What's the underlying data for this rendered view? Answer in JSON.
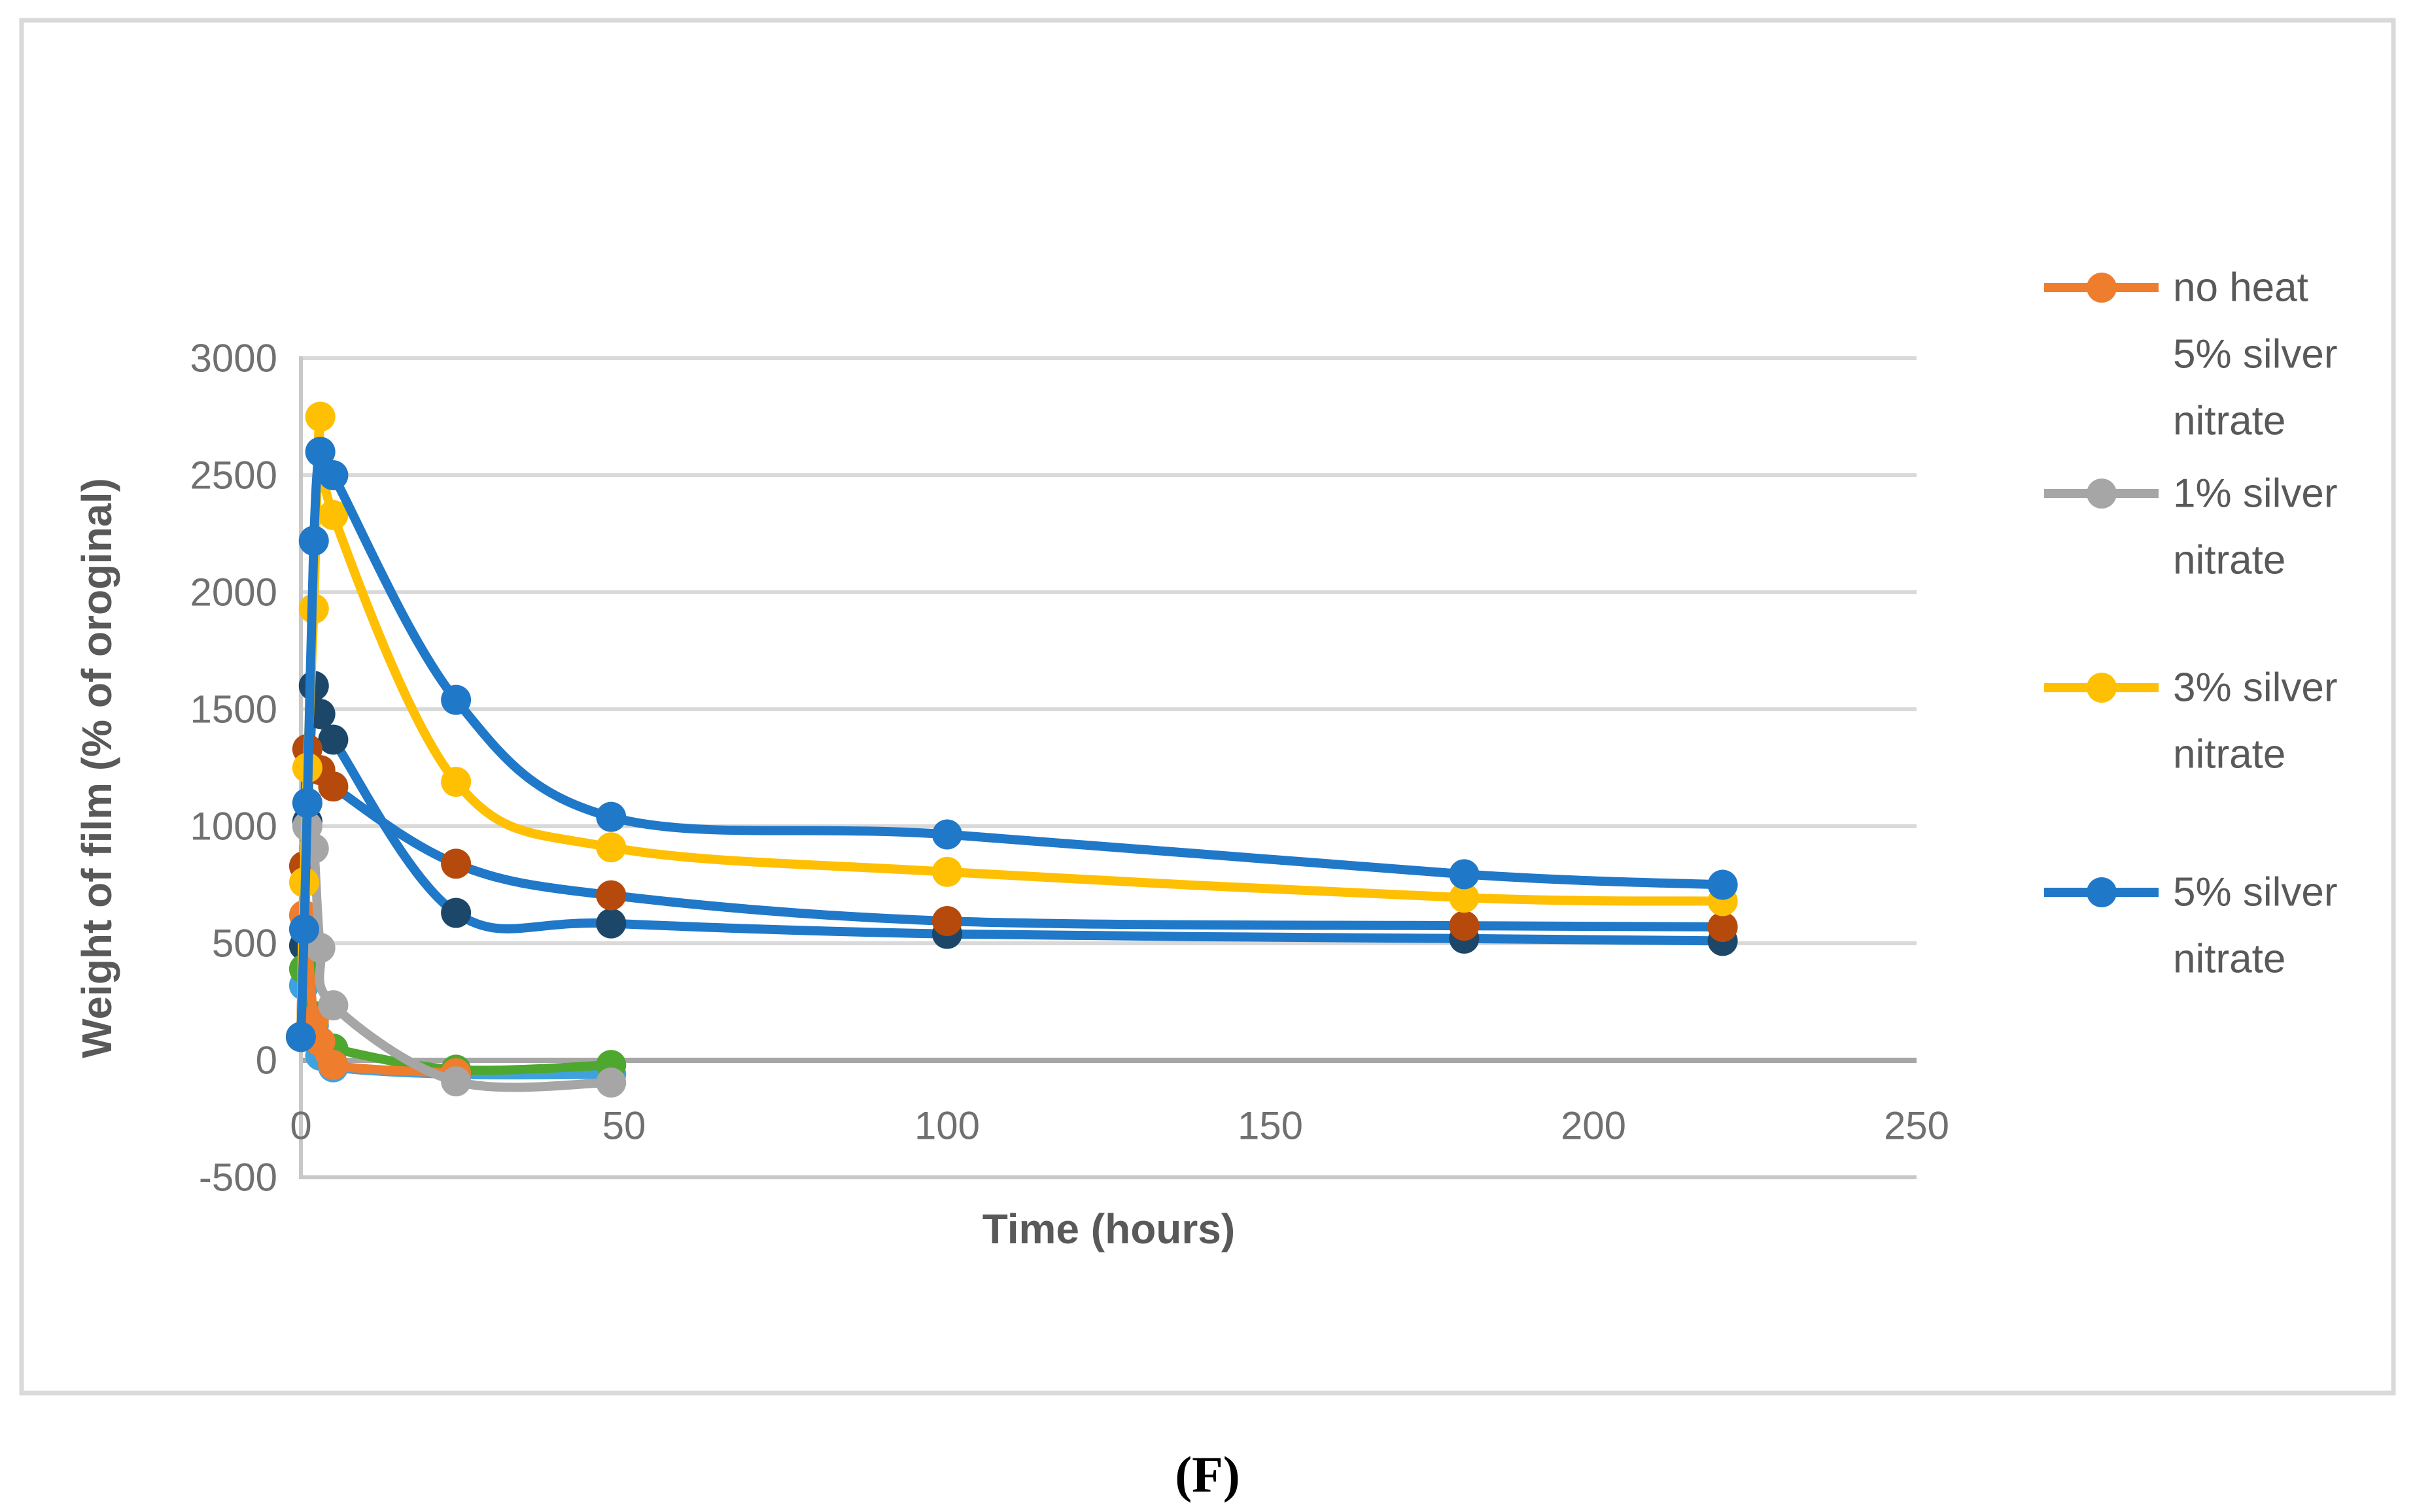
{
  "figure_caption": "(F)",
  "axes": {
    "x_title": "Time (hours)",
    "y_title": "Weight of film (% of oroginal)",
    "x_ticks": [
      "0",
      "50",
      "100",
      "150",
      "200",
      "250"
    ],
    "y_ticks": [
      "3000",
      "2500",
      "2000",
      "1500",
      "1000",
      "500",
      "0",
      "-500"
    ]
  },
  "legend": {
    "items": [
      {
        "label_lines": [
          "no heat",
          "5% silver",
          "nitrate"
        ],
        "color": "#EE7D2E"
      },
      {
        "label_lines": [
          "1% silver",
          "nitrate"
        ],
        "color": "#A6A6A6"
      },
      {
        "label_lines": [
          "3% silver",
          "nitrate"
        ],
        "color": "#FFC003"
      },
      {
        "label_lines": [
          "5% silver",
          "nitrate"
        ],
        "color": "#2078C8"
      }
    ]
  },
  "chart_data": {
    "type": "line",
    "title": "",
    "xlabel": "Time (hours)",
    "ylabel": "Weight of film (% of oroginal)",
    "xlim": [
      0,
      250
    ],
    "ylim": [
      -500,
      3000
    ],
    "x_ticks": [
      0,
      50,
      100,
      150,
      200,
      250
    ],
    "y_ticks": [
      3000,
      2500,
      2000,
      1500,
      1000,
      500,
      0,
      -500
    ],
    "grid": true,
    "legend_position": "right",
    "line_style": "smooth",
    "colors": {
      "orange": "#EE7D2E",
      "gray": "#A6A6A6",
      "yellow": "#FFC003",
      "blue": "#2078C8",
      "dark_navy": "#1C4769",
      "dark_red": "#B54A0C",
      "green": "#4EA72E",
      "light_blue": "#3FA2DE",
      "gridline": "#D9D9D9",
      "zero_axis": "#A6A6A6",
      "plot_border": "#C8C8C8"
    },
    "series": [
      {
        "name": "unlabeled dark navy",
        "in_legend": false,
        "line_color": "#2078C8",
        "marker_color": "#1C4769",
        "points": [
          [
            0,
            100
          ],
          [
            0.5,
            490
          ],
          [
            1,
            1020
          ],
          [
            2,
            1600
          ],
          [
            3,
            1480
          ],
          [
            5,
            1370
          ],
          [
            24,
            630
          ],
          [
            48,
            585
          ],
          [
            100,
            540
          ],
          [
            180,
            520
          ],
          [
            220,
            510
          ]
        ]
      },
      {
        "name": "unlabeled dark red",
        "in_legend": false,
        "line_color": "#2078C8",
        "marker_color": "#B54A0C",
        "points": [
          [
            0,
            100
          ],
          [
            0.5,
            830
          ],
          [
            1,
            1330
          ],
          [
            3,
            1240
          ],
          [
            5,
            1170
          ],
          [
            24,
            840
          ],
          [
            48,
            705
          ],
          [
            100,
            595
          ],
          [
            180,
            575
          ],
          [
            220,
            570
          ]
        ]
      },
      {
        "name": "unlabeled light blue",
        "in_legend": false,
        "line_color": "#3FA2DE",
        "marker_color": "#3FA2DE",
        "points": [
          [
            0,
            100
          ],
          [
            0.5,
            320
          ],
          [
            2,
            150
          ],
          [
            3,
            20
          ],
          [
            5,
            -30
          ],
          [
            24,
            -60
          ],
          [
            48,
            -60
          ]
        ]
      },
      {
        "name": "unlabeled green",
        "in_legend": false,
        "line_color": "#4EA72E",
        "marker_color": "#4EA72E",
        "points": [
          [
            0,
            100
          ],
          [
            0.5,
            390
          ],
          [
            2,
            190
          ],
          [
            3,
            80
          ],
          [
            5,
            50
          ],
          [
            24,
            -40
          ],
          [
            48,
            -20
          ]
        ]
      },
      {
        "name": "no heat 5% silver nitrate",
        "in_legend": true,
        "line_color": "#EE7D2E",
        "marker_color": "#EE7D2E",
        "points": [
          [
            0,
            100
          ],
          [
            0.5,
            620
          ],
          [
            2,
            170
          ],
          [
            3,
            80
          ],
          [
            5,
            -20
          ],
          [
            24,
            -55
          ]
        ]
      },
      {
        "name": "1% silver nitrate",
        "in_legend": true,
        "line_color": "#A6A6A6",
        "marker_color": "#A6A6A6",
        "points": [
          [
            0,
            100
          ],
          [
            1,
            1000
          ],
          [
            2,
            905
          ],
          [
            3,
            480
          ],
          [
            5,
            235
          ],
          [
            24,
            -90
          ],
          [
            48,
            -95
          ]
        ]
      },
      {
        "name": "3% silver nitrate",
        "in_legend": true,
        "line_color": "#FFC003",
        "marker_color": "#FFC003",
        "points": [
          [
            0,
            100
          ],
          [
            0.5,
            760
          ],
          [
            1,
            1250
          ],
          [
            2,
            1930
          ],
          [
            3,
            2750
          ],
          [
            5,
            2330
          ],
          [
            24,
            1190
          ],
          [
            48,
            910
          ],
          [
            100,
            805
          ],
          [
            180,
            695
          ],
          [
            220,
            680
          ]
        ]
      },
      {
        "name": "5% silver nitrate",
        "in_legend": true,
        "line_color": "#2078C8",
        "marker_color": "#2078C8",
        "points": [
          [
            0,
            100
          ],
          [
            0.5,
            560
          ],
          [
            1,
            1100
          ],
          [
            2,
            2220
          ],
          [
            3,
            2600
          ],
          [
            5,
            2500
          ],
          [
            24,
            1540
          ],
          [
            48,
            1040
          ],
          [
            100,
            965
          ],
          [
            180,
            795
          ],
          [
            220,
            750
          ]
        ]
      }
    ]
  }
}
